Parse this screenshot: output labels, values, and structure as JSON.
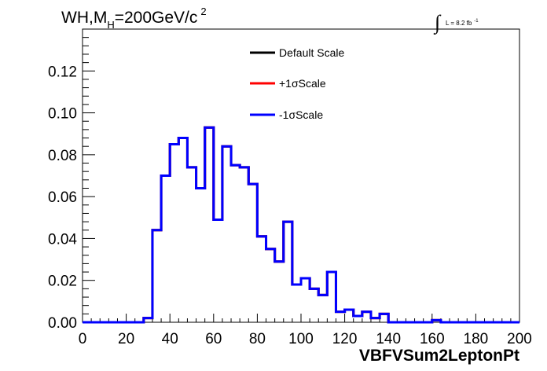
{
  "title": {
    "prefix": "WH,M",
    "subscript": "H",
    "suffix": "=200GeV/c",
    "superscript": "2"
  },
  "lumi": {
    "integral_symbol": "∫",
    "text": "L = 8.2 fb",
    "superscript": "-1"
  },
  "legend": [
    {
      "label": "Default Scale",
      "color": "#000000"
    },
    {
      "label": "+1σScale",
      "color": "#ff0000"
    },
    {
      "label": "-1σScale",
      "color": "#0000ff"
    }
  ],
  "chart_data": {
    "type": "line",
    "title": "WH,MH=200GeV/c2",
    "xlabel": "VBFVSum2LeptonPt",
    "ylabel": "",
    "xlim": [
      0,
      200
    ],
    "ylim": [
      0,
      0.14
    ],
    "xticks": [
      0,
      20,
      40,
      60,
      80,
      100,
      120,
      140,
      160,
      180,
      200
    ],
    "xtick_labels": [
      "0",
      "20",
      "40",
      "60",
      "80",
      "100",
      "120",
      "140",
      "160",
      "180",
      "200"
    ],
    "yticks": [
      0,
      0.02,
      0.04,
      0.06,
      0.08,
      0.1,
      0.12
    ],
    "ytick_labels": [
      "0.00",
      "0.02",
      "0.04",
      "0.06",
      "0.08",
      "0.10",
      "0.12"
    ],
    "grid": false,
    "histogram": true,
    "bin_width": 4,
    "bin_edges_start": 0,
    "series": [
      {
        "name": "Default Scale",
        "color": "#000000",
        "values": [
          0,
          0,
          0,
          0,
          0,
          0,
          0,
          0.002,
          0.044,
          0.07,
          0.085,
          0.088,
          0.074,
          0.064,
          0.093,
          0.049,
          0.084,
          0.075,
          0.074,
          0.066,
          0.041,
          0.035,
          0.029,
          0.048,
          0.018,
          0.021,
          0.016,
          0.013,
          0.024,
          0.005,
          0.006,
          0.003,
          0.005,
          0.002,
          0.004,
          0,
          0,
          0,
          0,
          0,
          0.001,
          0,
          0,
          0,
          0,
          0,
          0,
          0,
          0,
          0
        ]
      },
      {
        "name": "+1σScale",
        "color": "#ff0000",
        "values": [
          0,
          0,
          0,
          0,
          0,
          0,
          0,
          0.002,
          0.044,
          0.07,
          0.085,
          0.088,
          0.074,
          0.064,
          0.093,
          0.049,
          0.084,
          0.075,
          0.074,
          0.066,
          0.041,
          0.035,
          0.029,
          0.048,
          0.018,
          0.021,
          0.016,
          0.013,
          0.024,
          0.005,
          0.006,
          0.003,
          0.005,
          0.002,
          0.004,
          0,
          0,
          0,
          0,
          0,
          0.001,
          0,
          0,
          0,
          0,
          0,
          0,
          0,
          0,
          0
        ]
      },
      {
        "name": "-1σScale",
        "color": "#0000ff",
        "values": [
          0,
          0,
          0,
          0,
          0,
          0,
          0,
          0.002,
          0.044,
          0.07,
          0.085,
          0.088,
          0.074,
          0.064,
          0.093,
          0.049,
          0.084,
          0.075,
          0.074,
          0.066,
          0.041,
          0.035,
          0.029,
          0.048,
          0.018,
          0.021,
          0.016,
          0.013,
          0.024,
          0.005,
          0.006,
          0.003,
          0.005,
          0.002,
          0.004,
          0,
          0,
          0,
          0,
          0,
          0.001,
          0,
          0,
          0,
          0,
          0,
          0,
          0,
          0,
          0
        ]
      }
    ]
  }
}
